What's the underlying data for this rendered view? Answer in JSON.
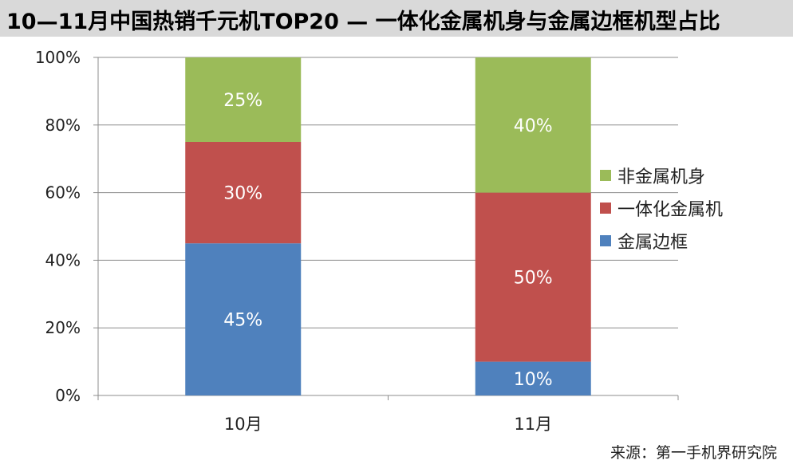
{
  "chart_data": {
    "type": "bar",
    "stacked": true,
    "title": "10—11月中国热销千元机TOP20 — 一体化金属机身与金属边框机型占比",
    "categories": [
      "10月",
      "11月"
    ],
    "series": [
      {
        "name": "金属边框",
        "values": [
          45,
          10
        ],
        "color": "#4f81bd"
      },
      {
        "name": "一体化金属机",
        "values": [
          30,
          50
        ],
        "color": "#c0504d"
      },
      {
        "name": "非金属机身",
        "values": [
          25,
          40
        ],
        "color": "#9bbb59"
      }
    ],
    "ylim": [
      0,
      100
    ],
    "yticks": [
      "0%",
      "20%",
      "40%",
      "60%",
      "80%",
      "100%"
    ],
    "value_suffix": "%",
    "grid": true,
    "legend_position": "right",
    "legend_order": [
      "非金属机身",
      "一体化金属机",
      "金属边框"
    ]
  },
  "source": "来源：第一手机界研究院"
}
